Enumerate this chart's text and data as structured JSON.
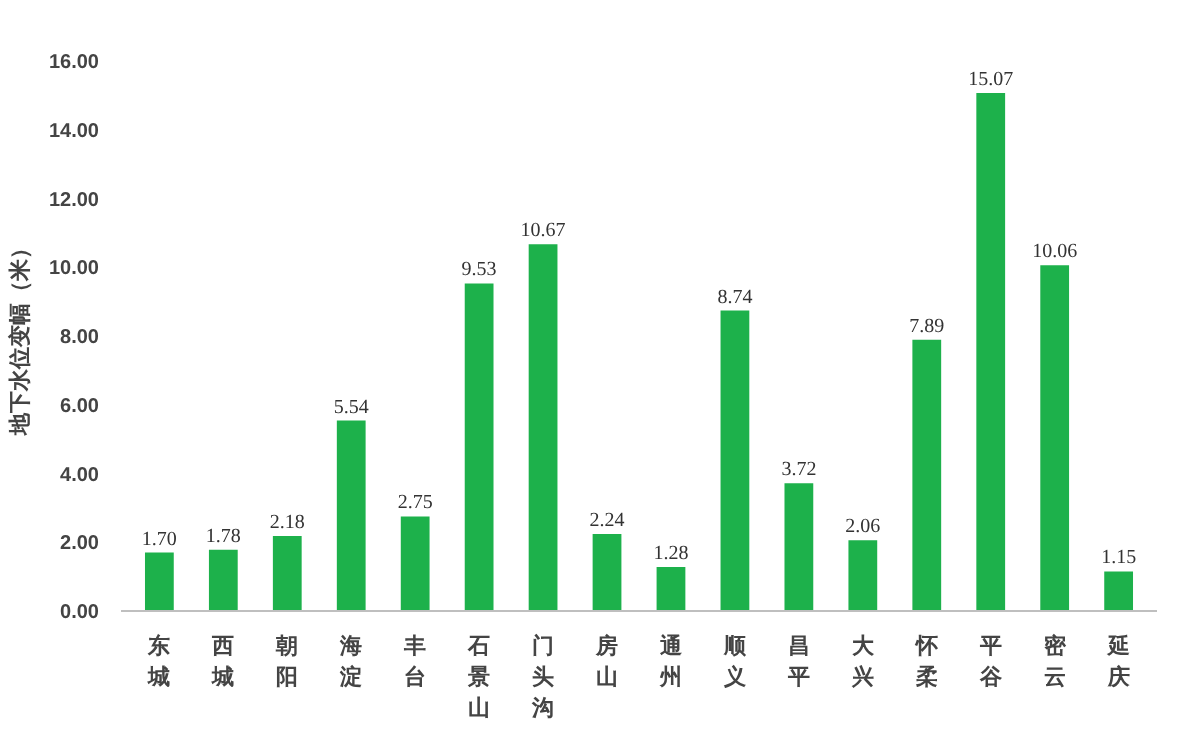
{
  "chart_data": {
    "type": "bar",
    "ylabel": "地下水位变幅（米）",
    "categories": [
      "东城",
      "西城",
      "朝阳",
      "海淀",
      "丰台",
      "石景山",
      "门头沟",
      "房山",
      "通州",
      "顺义",
      "昌平",
      "大兴",
      "怀柔",
      "平谷",
      "密云",
      "延庆"
    ],
    "values": [
      1.7,
      1.78,
      2.18,
      5.54,
      2.75,
      9.53,
      10.67,
      2.24,
      1.28,
      8.74,
      3.72,
      2.06,
      7.89,
      15.07,
      10.06,
      1.15
    ],
    "value_labels": [
      "1.70",
      "1.78",
      "2.18",
      "5.54",
      "2.75",
      "9.53",
      "10.67",
      "2.24",
      "1.28",
      "8.74",
      "3.72",
      "2.06",
      "7.89",
      "15.07",
      "10.06",
      "1.15"
    ],
    "color": "#1db14b",
    "ylim": [
      0,
      16
    ],
    "yticks": [
      {
        "value": 0,
        "label": "0.00"
      },
      {
        "value": 2,
        "label": "2.00"
      },
      {
        "value": 4,
        "label": "4.00"
      },
      {
        "value": 6,
        "label": "6.00"
      },
      {
        "value": 8,
        "label": "8.00"
      },
      {
        "value": 10,
        "label": "10.00"
      },
      {
        "value": 12,
        "label": "12.00"
      },
      {
        "value": 14,
        "label": "14.00"
      },
      {
        "value": 16,
        "label": "16.00"
      }
    ],
    "grid": false
  }
}
